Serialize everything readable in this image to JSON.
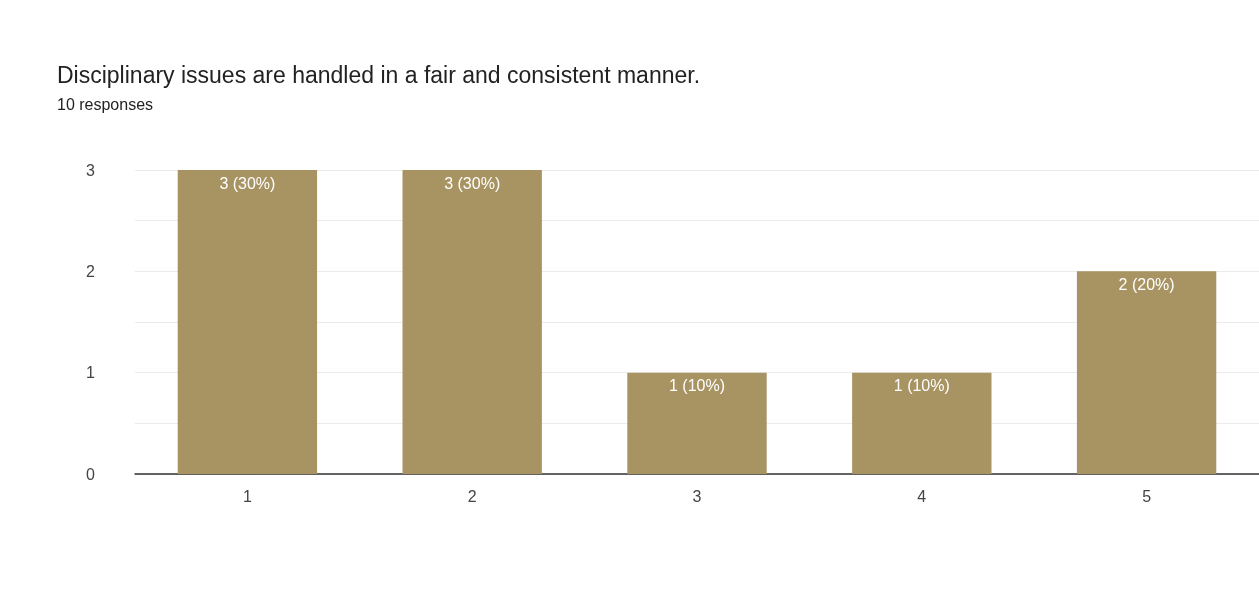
{
  "chart_data": {
    "type": "bar",
    "title": "Disciplinary issues are handled in a fair and consistent manner.",
    "subtitle": "10 responses",
    "categories": [
      "1",
      "2",
      "3",
      "4",
      "5"
    ],
    "values": [
      3,
      3,
      1,
      1,
      2
    ],
    "color": "#a89462",
    "value_labels": [
      "3 (30%)",
      "3 (30%)",
      "1 (10%)",
      "1 (10%)",
      "2 (20%)"
    ],
    "ylim": [
      0,
      3
    ],
    "yticks": [
      0,
      {
        "value": 0.5,
        "label": null
      },
      1,
      {
        "value": 1.5,
        "label": null
      },
      2,
      {
        "value": 2.5,
        "label": null
      },
      3
    ],
    "grid": "y"
  }
}
